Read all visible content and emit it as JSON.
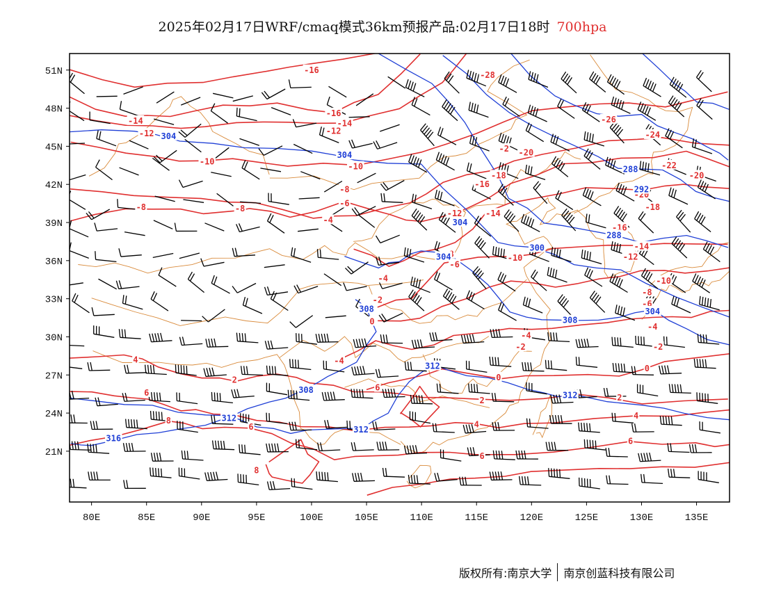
{
  "title": {
    "text": "2025年02月17日WRF/cmaq模式36km预报产品:02月17日18时",
    "level": "700hpa"
  },
  "colors": {
    "temp": "#e03030",
    "height": "#1f3fd6",
    "border": "#d98a3a",
    "wind": "#000000",
    "frame": "#000000"
  },
  "axes": {
    "lon_labels": [
      "80E",
      "85E",
      "90E",
      "95E",
      "100E",
      "105E",
      "110E",
      "115E",
      "120E",
      "125E",
      "130E",
      "135E"
    ],
    "lat_labels": [
      "51N",
      "48N",
      "45N",
      "42N",
      "39N",
      "36N",
      "33N",
      "30N",
      "27N",
      "24N",
      "21N"
    ]
  },
  "temperature_labels": [
    {
      "text": "-16",
      "lon": 100,
      "lat": 51
    },
    {
      "text": "-14",
      "lon": 84,
      "lat": 47
    },
    {
      "text": "-12",
      "lon": 85,
      "lat": 46
    },
    {
      "text": "-16",
      "lon": 102,
      "lat": 47.6
    },
    {
      "text": "-14",
      "lon": 103,
      "lat": 46.8
    },
    {
      "text": "-12",
      "lon": 102,
      "lat": 46.2
    },
    {
      "text": "-10",
      "lon": 90.5,
      "lat": 43.8
    },
    {
      "text": "-10",
      "lon": 104,
      "lat": 43.4
    },
    {
      "text": "-8",
      "lon": 84.5,
      "lat": 40.2
    },
    {
      "text": "-8",
      "lon": 93.5,
      "lat": 40.1
    },
    {
      "text": "-8",
      "lon": 103,
      "lat": 41.6
    },
    {
      "text": "-6",
      "lon": 103,
      "lat": 40.5
    },
    {
      "text": "-4",
      "lon": 101.5,
      "lat": 39.2
    },
    {
      "text": "-28",
      "lon": 116,
      "lat": 50.6
    },
    {
      "text": "-26",
      "lon": 127,
      "lat": 47.1
    },
    {
      "text": "-24",
      "lon": 131,
      "lat": 45.9
    },
    {
      "text": "-22",
      "lon": 132.5,
      "lat": 43.5
    },
    {
      "text": "-20",
      "lon": 135,
      "lat": 42.7
    },
    {
      "text": "-20",
      "lon": 130,
      "lat": 41.2
    },
    {
      "text": "-20",
      "lon": 119.5,
      "lat": 44.5
    },
    {
      "text": "-2",
      "lon": 117.5,
      "lat": 44.8
    },
    {
      "text": "-18",
      "lon": 117,
      "lat": 42.7
    },
    {
      "text": "-16",
      "lon": 115.5,
      "lat": 42
    },
    {
      "text": "-18",
      "lon": 131,
      "lat": 40.2
    },
    {
      "text": "-16",
      "lon": 128,
      "lat": 38.6
    },
    {
      "text": "-14",
      "lon": 130,
      "lat": 37.1
    },
    {
      "text": "-12",
      "lon": 129,
      "lat": 36.3
    },
    {
      "text": "-12",
      "lon": 113,
      "lat": 39.7
    },
    {
      "text": "-14",
      "lon": 116.5,
      "lat": 39.7
    },
    {
      "text": "-10",
      "lon": 118.5,
      "lat": 36.2
    },
    {
      "text": "-8",
      "lon": 112.5,
      "lat": 36.5
    },
    {
      "text": "-6",
      "lon": 113,
      "lat": 35.7
    },
    {
      "text": "-4",
      "lon": 106.5,
      "lat": 34.6
    },
    {
      "text": "-2",
      "lon": 106,
      "lat": 32.9
    },
    {
      "text": "0",
      "lon": 105.5,
      "lat": 31.2
    },
    {
      "text": "-4",
      "lon": 119.5,
      "lat": 30.1
    },
    {
      "text": "-2",
      "lon": 119,
      "lat": 29.2
    },
    {
      "text": "-10",
      "lon": 132,
      "lat": 34.4
    },
    {
      "text": "-8",
      "lon": 130.5,
      "lat": 33.5
    },
    {
      "text": "-6",
      "lon": 130.5,
      "lat": 32.6
    },
    {
      "text": "-4",
      "lon": 131,
      "lat": 30.8
    },
    {
      "text": "-2",
      "lon": 131.5,
      "lat": 29.2
    },
    {
      "text": "0",
      "lon": 130.5,
      "lat": 27.5
    },
    {
      "text": "0",
      "lon": 117,
      "lat": 26.8
    },
    {
      "text": "2",
      "lon": 128,
      "lat": 25.2
    },
    {
      "text": "2",
      "lon": 115.5,
      "lat": 25
    },
    {
      "text": "4",
      "lon": 129.5,
      "lat": 23.8
    },
    {
      "text": "4",
      "lon": 115,
      "lat": 23.1
    },
    {
      "text": "6",
      "lon": 129,
      "lat": 21.8
    },
    {
      "text": "6",
      "lon": 115.5,
      "lat": 20.6
    },
    {
      "text": "-4",
      "lon": 102.5,
      "lat": 28.1
    },
    {
      "text": "6",
      "lon": 106,
      "lat": 26
    },
    {
      "text": "2",
      "lon": 93,
      "lat": 26.6
    },
    {
      "text": "4",
      "lon": 84,
      "lat": 28.2
    },
    {
      "text": "6",
      "lon": 85,
      "lat": 25.6
    },
    {
      "text": "8",
      "lon": 87,
      "lat": 23.4
    },
    {
      "text": "6",
      "lon": 94.5,
      "lat": 22.9
    },
    {
      "text": "8",
      "lon": 95,
      "lat": 19.5
    }
  ],
  "height_labels": [
    {
      "text": "304",
      "lon": 87,
      "lat": 45.8
    },
    {
      "text": "304",
      "lon": 103,
      "lat": 44.3
    },
    {
      "text": "288",
      "lon": 129,
      "lat": 43.2
    },
    {
      "text": "292",
      "lon": 130,
      "lat": 41.6
    },
    {
      "text": "304",
      "lon": 113.5,
      "lat": 39
    },
    {
      "text": "300",
      "lon": 120.5,
      "lat": 37
    },
    {
      "text": "288",
      "lon": 127.5,
      "lat": 38
    },
    {
      "text": "304",
      "lon": 112,
      "lat": 36.3
    },
    {
      "text": "308",
      "lon": 105,
      "lat": 32.2
    },
    {
      "text": "308",
      "lon": 123.5,
      "lat": 31.3
    },
    {
      "text": "304",
      "lon": 131,
      "lat": 32
    },
    {
      "text": "312",
      "lon": 111,
      "lat": 27.7
    },
    {
      "text": "312",
      "lon": 123.5,
      "lat": 25.4
    },
    {
      "text": "308",
      "lon": 99.5,
      "lat": 25.8
    },
    {
      "text": "312",
      "lon": 92.5,
      "lat": 23.6
    },
    {
      "text": "312",
      "lon": 104.5,
      "lat": 22.7
    },
    {
      "text": "316",
      "lon": 82,
      "lat": 22
    }
  ],
  "footer": {
    "owner_label": "版权所有:",
    "owner1": "南京大学",
    "owner2": "南京创蓝科技有限公司"
  }
}
